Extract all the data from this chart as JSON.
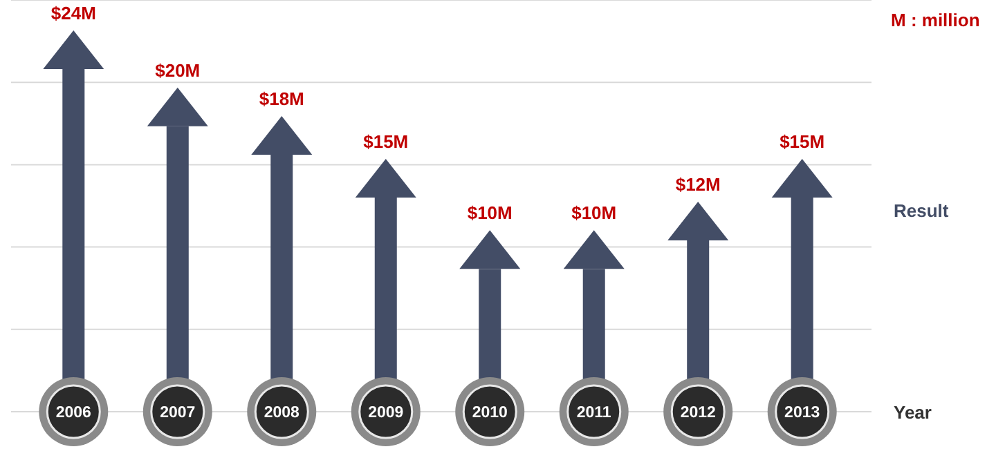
{
  "chart_data": {
    "type": "bar",
    "categories": [
      "2006",
      "2007",
      "2008",
      "2009",
      "2010",
      "2011",
      "2012",
      "2013"
    ],
    "values": [
      24,
      20,
      18,
      15,
      10,
      10,
      12,
      15
    ],
    "value_labels": [
      "$24M",
      "$20M",
      "$18M",
      "$15M",
      "$10M",
      "$10M",
      "$12M",
      "$15M"
    ],
    "color": "#434d66",
    "grid": "y",
    "xlabel": "Year",
    "ylabel": "Result",
    "annotations": [
      "M : million"
    ]
  }
}
